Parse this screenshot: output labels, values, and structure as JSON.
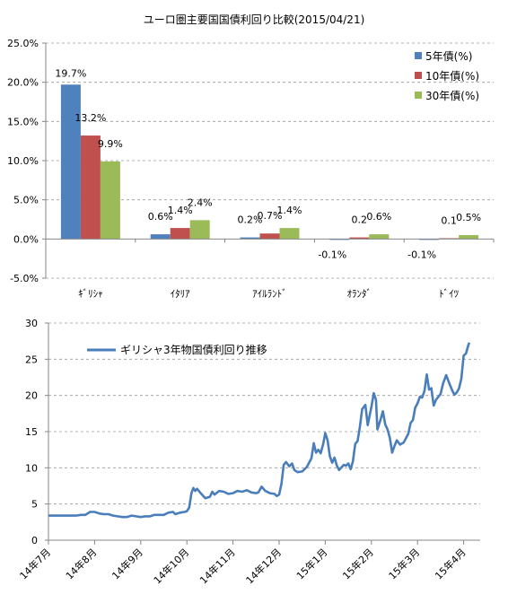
{
  "colors": {
    "y5": "#4F81BD",
    "y10": "#C0504D",
    "y30": "#9BBB59",
    "line": "#4A7EBB",
    "grid": "#9a9a9a",
    "axis": "#868686",
    "text": "#000000"
  },
  "chart_data": [
    {
      "type": "bar",
      "title": "ユーロ圏主要国国債利回り比較(2015/04/21)",
      "categories": [
        "ｷﾞﾘｼｬ",
        "ｲﾀﾘｱ",
        "ｱｲﾙﾗﾝﾄﾞ",
        "ｵﾗﾝﾀﾞ",
        "ﾄﾞｲﾂ"
      ],
      "series": [
        {
          "name": "5年債(%)",
          "values": [
            19.7,
            0.6,
            0.2,
            -0.1,
            -0.1
          ],
          "labels": [
            "19.7%",
            "0.6%",
            "0.2%",
            "-0.1%",
            "-0.1%"
          ]
        },
        {
          "name": "10年債(%)",
          "values": [
            13.2,
            1.4,
            0.7,
            0.2,
            0.1
          ],
          "labels": [
            "13.2%",
            "1.4%",
            "0.7%",
            "0.2",
            "0.1"
          ]
        },
        {
          "name": "30年債(%)",
          "values": [
            9.9,
            2.4,
            1.4,
            0.6,
            0.5
          ],
          "labels": [
            "9.9%",
            "2.4%",
            "1.4%",
            "0.6%",
            "0.5%"
          ]
        }
      ],
      "ylim": [
        -5,
        25
      ],
      "yticks": [
        -5,
        0,
        5,
        10,
        15,
        20,
        25
      ],
      "ytick_labels": [
        "-5.0%",
        "0.0%",
        "5.0%",
        "10.0%",
        "15.0%",
        "20.0%",
        "25.0%"
      ],
      "grid": true,
      "legend_position": "top-right"
    },
    {
      "type": "line",
      "series_name": "ギリシャ3年物国債利回り推移",
      "ylim": [
        0,
        30
      ],
      "yticks": [
        0,
        5,
        10,
        15,
        20,
        25,
        30
      ],
      "x_tick_labels": [
        "14年7月",
        "14年8月",
        "14年9月",
        "14年10月",
        "14年11月",
        "14年12月",
        "15年1月",
        "15年2月",
        "15年3月",
        "15年4月"
      ],
      "x_range_months": [
        0,
        9.3
      ],
      "grid": true,
      "legend_position": "top-left",
      "points": [
        [
          0.0,
          3.4
        ],
        [
          0.2,
          3.4
        ],
        [
          0.4,
          3.4
        ],
        [
          0.6,
          3.4
        ],
        [
          0.7,
          3.5
        ],
        [
          0.8,
          3.5
        ],
        [
          0.9,
          3.9
        ],
        [
          1.0,
          3.9
        ],
        [
          1.1,
          3.7
        ],
        [
          1.2,
          3.6
        ],
        [
          1.3,
          3.6
        ],
        [
          1.4,
          3.4
        ],
        [
          1.5,
          3.3
        ],
        [
          1.6,
          3.2
        ],
        [
          1.7,
          3.2
        ],
        [
          1.8,
          3.4
        ],
        [
          1.9,
          3.3
        ],
        [
          2.0,
          3.2
        ],
        [
          2.1,
          3.3
        ],
        [
          2.2,
          3.3
        ],
        [
          2.3,
          3.5
        ],
        [
          2.4,
          3.5
        ],
        [
          2.5,
          3.5
        ],
        [
          2.6,
          3.8
        ],
        [
          2.7,
          3.9
        ],
        [
          2.75,
          3.6
        ],
        [
          2.85,
          3.8
        ],
        [
          2.95,
          3.9
        ],
        [
          3.0,
          4.0
        ],
        [
          3.05,
          4.5
        ],
        [
          3.1,
          6.5
        ],
        [
          3.14,
          7.2
        ],
        [
          3.18,
          6.8
        ],
        [
          3.22,
          7.1
        ],
        [
          3.3,
          6.5
        ],
        [
          3.4,
          5.8
        ],
        [
          3.5,
          6.0
        ],
        [
          3.55,
          6.7
        ],
        [
          3.6,
          6.3
        ],
        [
          3.7,
          6.8
        ],
        [
          3.8,
          6.7
        ],
        [
          3.9,
          6.4
        ],
        [
          4.0,
          6.5
        ],
        [
          4.1,
          6.8
        ],
        [
          4.2,
          6.7
        ],
        [
          4.3,
          6.9
        ],
        [
          4.4,
          6.6
        ],
        [
          4.5,
          6.5
        ],
        [
          4.55,
          6.6
        ],
        [
          4.62,
          7.4
        ],
        [
          4.7,
          6.8
        ],
        [
          4.8,
          6.5
        ],
        [
          4.9,
          6.4
        ],
        [
          4.95,
          6.1
        ],
        [
          5.0,
          6.3
        ],
        [
          5.05,
          7.8
        ],
        [
          5.1,
          10.4
        ],
        [
          5.15,
          10.8
        ],
        [
          5.22,
          10.2
        ],
        [
          5.28,
          10.6
        ],
        [
          5.33,
          9.7
        ],
        [
          5.4,
          9.4
        ],
        [
          5.5,
          9.5
        ],
        [
          5.6,
          10.1
        ],
        [
          5.7,
          11.3
        ],
        [
          5.75,
          13.4
        ],
        [
          5.8,
          12.1
        ],
        [
          5.85,
          12.5
        ],
        [
          5.9,
          12.0
        ],
        [
          5.96,
          13.4
        ],
        [
          6.0,
          14.8
        ],
        [
          6.05,
          13.8
        ],
        [
          6.1,
          11.6
        ],
        [
          6.15,
          10.7
        ],
        [
          6.2,
          11.4
        ],
        [
          6.25,
          10.3
        ],
        [
          6.3,
          9.7
        ],
        [
          6.4,
          10.4
        ],
        [
          6.45,
          10.3
        ],
        [
          6.5,
          10.6
        ],
        [
          6.55,
          9.8
        ],
        [
          6.6,
          10.9
        ],
        [
          6.65,
          13.3
        ],
        [
          6.7,
          13.7
        ],
        [
          6.75,
          15.6
        ],
        [
          6.8,
          18.1
        ],
        [
          6.87,
          18.7
        ],
        [
          6.92,
          15.9
        ],
        [
          7.0,
          18.4
        ],
        [
          7.05,
          20.3
        ],
        [
          7.1,
          19.4
        ],
        [
          7.13,
          15.3
        ],
        [
          7.2,
          16.7
        ],
        [
          7.25,
          17.8
        ],
        [
          7.3,
          16.0
        ],
        [
          7.35,
          15.3
        ],
        [
          7.4,
          14.1
        ],
        [
          7.45,
          12.1
        ],
        [
          7.5,
          13.0
        ],
        [
          7.55,
          13.8
        ],
        [
          7.62,
          13.2
        ],
        [
          7.7,
          13.5
        ],
        [
          7.8,
          14.7
        ],
        [
          7.85,
          16.2
        ],
        [
          7.9,
          16.6
        ],
        [
          7.95,
          18.3
        ],
        [
          8.0,
          18.9
        ],
        [
          8.05,
          19.8
        ],
        [
          8.1,
          19.7
        ],
        [
          8.15,
          20.6
        ],
        [
          8.2,
          22.9
        ],
        [
          8.25,
          20.8
        ],
        [
          8.3,
          21.0
        ],
        [
          8.35,
          18.6
        ],
        [
          8.4,
          19.4
        ],
        [
          8.45,
          19.8
        ],
        [
          8.5,
          20.2
        ],
        [
          8.55,
          21.6
        ],
        [
          8.62,
          22.8
        ],
        [
          8.68,
          21.8
        ],
        [
          8.75,
          20.7
        ],
        [
          8.8,
          20.1
        ],
        [
          8.85,
          20.4
        ],
        [
          8.9,
          21.0
        ],
        [
          8.95,
          22.3
        ],
        [
          9.0,
          25.5
        ],
        [
          9.05,
          25.8
        ],
        [
          9.1,
          26.9
        ],
        [
          9.12,
          27.3
        ]
      ]
    }
  ]
}
